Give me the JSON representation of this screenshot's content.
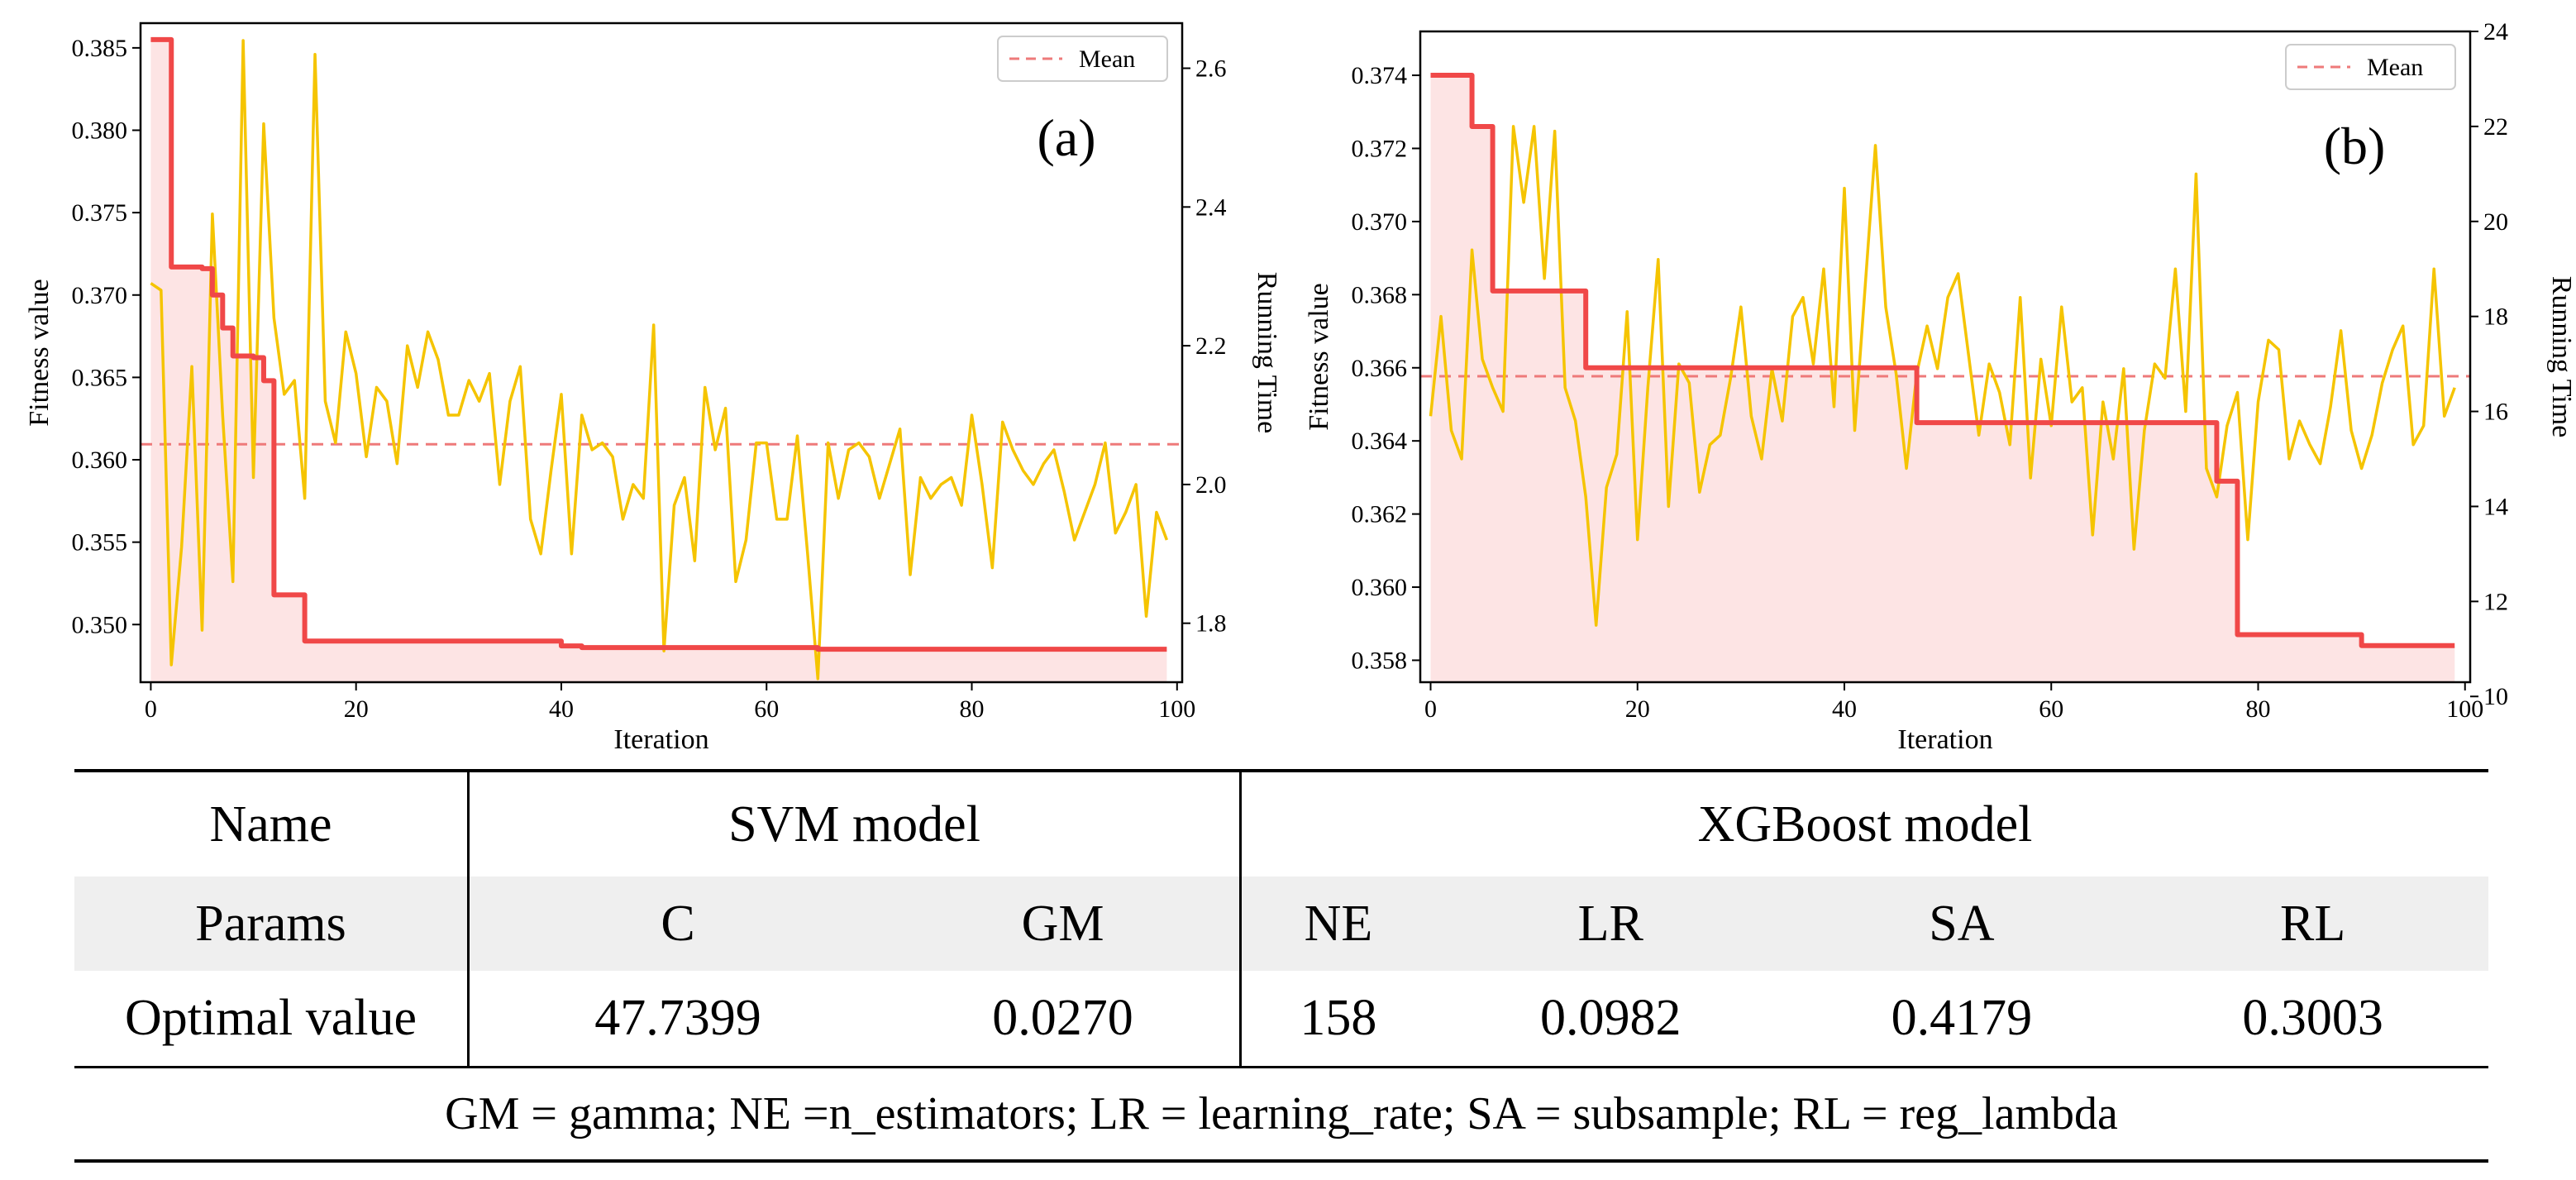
{
  "chart_data": [
    {
      "type": "line",
      "panel_label": "(a)",
      "xlabel": "Iteration",
      "ylabel": "Fitness value",
      "y2label": "Running Time",
      "xlim": [
        -1,
        100.5
      ],
      "ylim": [
        0.3465,
        0.3865
      ],
      "y2lim": [
        1.715,
        2.665
      ],
      "xticks": [
        0,
        20,
        40,
        60,
        80,
        100
      ],
      "yticks": [
        0.35,
        0.355,
        0.36,
        0.365,
        0.37,
        0.375,
        0.38,
        0.385
      ],
      "y2ticks": [
        1.8,
        2.0,
        2.2,
        2.4,
        2.6
      ],
      "legend": {
        "label": "Mean",
        "position": "top-right"
      },
      "mean_running_time": 2.058,
      "series": [
        {
          "name": "Fitness value",
          "axis": "left",
          "color": "#f04848",
          "steps": [
            [
              0,
              0.3855
            ],
            [
              2,
              0.3717
            ],
            [
              5,
              0.3716
            ],
            [
              6,
              0.37
            ],
            [
              7,
              0.368
            ],
            [
              8,
              0.3663
            ],
            [
              10,
              0.3662
            ],
            [
              11,
              0.3648
            ],
            [
              12,
              0.3518
            ],
            [
              14,
              0.3518
            ],
            [
              15,
              0.349
            ],
            [
              39,
              0.349
            ],
            [
              40,
              0.3487
            ],
            [
              42,
              0.3486
            ],
            [
              65,
              0.3485
            ],
            [
              99,
              0.3485
            ]
          ]
        },
        {
          "name": "Running Time",
          "axis": "right",
          "color": "#f5c400",
          "values": [
            2.29,
            2.28,
            1.74,
            1.91,
            2.17,
            1.79,
            2.39,
            2.1,
            1.86,
            2.64,
            2.01,
            2.52,
            2.24,
            2.13,
            2.15,
            1.98,
            2.62,
            2.12,
            2.06,
            2.22,
            2.16,
            2.04,
            2.14,
            2.12,
            2.03,
            2.2,
            2.14,
            2.22,
            2.18,
            2.1,
            2.1,
            2.15,
            2.12,
            2.16,
            2.0,
            2.12,
            2.17,
            1.95,
            1.9,
            2.02,
            2.13,
            1.9,
            2.1,
            2.05,
            2.06,
            2.04,
            1.95,
            2.0,
            1.98,
            2.23,
            1.76,
            1.97,
            2.01,
            1.89,
            2.14,
            2.05,
            2.11,
            1.86,
            1.92,
            2.06,
            2.06,
            1.95,
            1.95,
            2.07,
            1.9,
            1.72,
            2.06,
            1.98,
            2.05,
            2.06,
            2.04,
            1.98,
            2.03,
            2.08,
            1.87,
            2.01,
            1.98,
            2.0,
            2.01,
            1.97,
            2.1,
            2.0,
            1.88,
            2.09,
            2.05,
            2.02,
            2.0,
            2.03,
            2.05,
            1.99,
            1.92,
            1.96,
            2.0,
            2.06,
            1.93,
            1.96,
            2.0,
            1.81,
            1.96,
            1.92
          ]
        }
      ]
    },
    {
      "type": "line",
      "panel_label": "(b)",
      "xlabel": "Iteration",
      "ylabel": "Fitness value",
      "y2label": "Running Time",
      "xlim": [
        -1,
        100.5
      ],
      "ylim": [
        0.3574,
        0.3752
      ],
      "y2lim": [
        10.3,
        24.0
      ],
      "xticks": [
        0,
        20,
        40,
        60,
        80,
        100
      ],
      "yticks": [
        0.358,
        0.36,
        0.362,
        0.364,
        0.366,
        0.368,
        0.37,
        0.372,
        0.374
      ],
      "y2ticks": [
        10,
        12,
        14,
        16,
        18,
        20,
        22,
        24
      ],
      "legend": {
        "label": "Mean",
        "position": "top-right"
      },
      "mean_running_time": 16.74,
      "series": [
        {
          "name": "Fitness value",
          "axis": "left",
          "color": "#f04848",
          "steps": [
            [
              0,
              0.374
            ],
            [
              3,
              0.374
            ],
            [
              4,
              0.3726
            ],
            [
              5,
              0.3726
            ],
            [
              6,
              0.3681
            ],
            [
              14,
              0.3681
            ],
            [
              15,
              0.366
            ],
            [
              46,
              0.366
            ],
            [
              47,
              0.3645
            ],
            [
              75,
              0.3645
            ],
            [
              76,
              0.3629
            ],
            [
              77,
              0.3629
            ],
            [
              78,
              0.3587
            ],
            [
              89,
              0.3587
            ],
            [
              90,
              0.3584
            ],
            [
              99,
              0.3584
            ]
          ]
        },
        {
          "name": "Running Time",
          "axis": "right",
          "color": "#f5c400",
          "values": [
            15.9,
            18.0,
            15.6,
            15.0,
            19.4,
            17.1,
            16.5,
            16.0,
            22.0,
            20.4,
            22.0,
            18.8,
            21.9,
            16.5,
            15.8,
            14.2,
            11.5,
            14.4,
            15.1,
            18.1,
            13.3,
            16.5,
            19.2,
            14.0,
            17.0,
            16.6,
            14.3,
            15.3,
            15.5,
            16.7,
            18.2,
            15.9,
            15.0,
            16.9,
            15.8,
            18.0,
            18.4,
            17.0,
            19.0,
            16.1,
            20.7,
            15.6,
            18.6,
            21.6,
            18.2,
            16.8,
            14.8,
            16.8,
            17.8,
            16.9,
            18.4,
            18.9,
            17.2,
            15.5,
            17.0,
            16.4,
            15.3,
            18.4,
            14.6,
            17.1,
            15.7,
            18.2,
            16.2,
            16.5,
            13.4,
            16.2,
            15.0,
            16.9,
            13.1,
            15.6,
            17.0,
            16.7,
            19.0,
            16.0,
            21.0,
            14.8,
            14.2,
            15.7,
            16.4,
            13.3,
            16.2,
            17.5,
            17.3,
            15.0,
            15.8,
            15.3,
            14.9,
            16.1,
            17.7,
            15.6,
            14.8,
            15.5,
            16.6,
            17.3,
            17.8,
            15.3,
            15.7,
            19.0,
            15.9,
            16.5
          ]
        }
      ]
    }
  ],
  "table": {
    "name_row": {
      "label": "Name",
      "svm": "SVM model",
      "xgb": "XGBoost model"
    },
    "params_row": {
      "label": "Params",
      "cells": [
        "C",
        "GM",
        "NE",
        "LR",
        "SA",
        "RL"
      ]
    },
    "optimal_row": {
      "label": "Optimal value",
      "cells": [
        "47.7399",
        "0.0270",
        "158",
        "0.0982",
        "0.4179",
        "0.3003"
      ]
    },
    "footnote": "GM = gamma; NE =n_estimators; LR = learning_rate; SA = subsample; RL = reg_lambda"
  }
}
